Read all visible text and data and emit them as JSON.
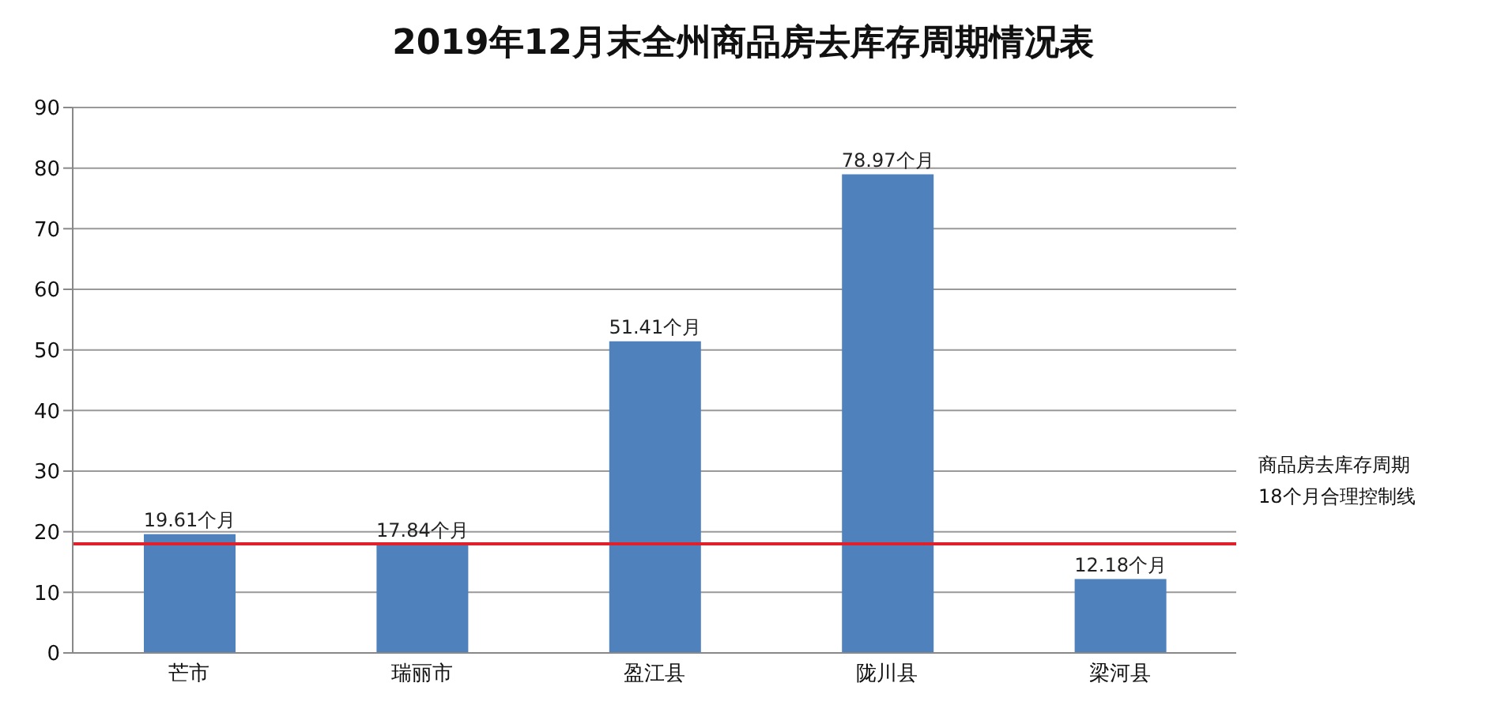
{
  "chart_data": {
    "type": "bar",
    "title": "2019年12月末全州商品房去库存周期情况表",
    "categories": [
      "芒市",
      "瑞丽市",
      "盈江县",
      "陇川县",
      "梁河县"
    ],
    "values": [
      19.61,
      17.84,
      51.41,
      78.97,
      12.18
    ],
    "value_labels": [
      "19.61个月",
      "17.84个月",
      "51.41个月",
      "78.97个月",
      "12.18个月"
    ],
    "color": "#4f81bd",
    "ylim": [
      0,
      90
    ],
    "yticks": [
      0,
      10,
      20,
      30,
      40,
      50,
      60,
      70,
      80,
      90
    ],
    "grid": "y",
    "ref_lines": [
      {
        "axis": "y",
        "value": 18,
        "label": "商品房去库存周期\n18个月合理控制线",
        "color": "#e0202a"
      }
    ]
  }
}
